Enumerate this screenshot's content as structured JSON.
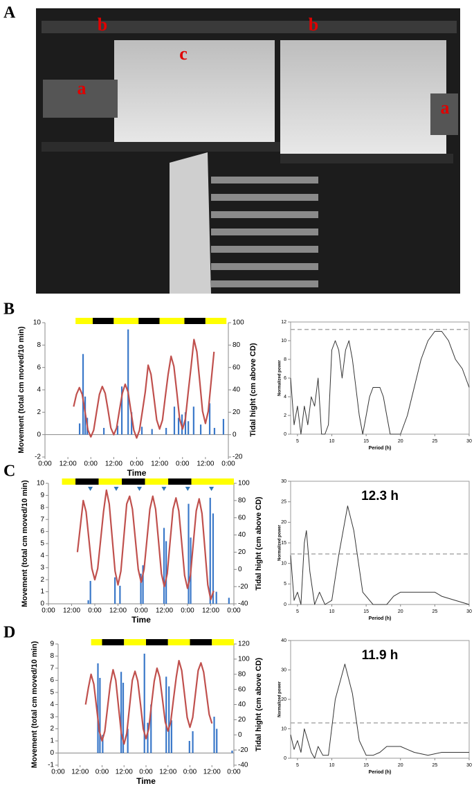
{
  "panel_labels": [
    "A",
    "B",
    "C",
    "D"
  ],
  "photo": {
    "labels": [
      "a",
      "b",
      "c",
      "b",
      "a"
    ]
  },
  "chart_data": [
    {
      "type": "combo",
      "xlabel": "Time",
      "ylabel": "Movement (total cm moved/10 min)",
      "y2label": "Tidal hight (cm above CD)",
      "xlim": [
        0,
        96
      ],
      "ylim": [
        -2,
        10
      ],
      "y2lim": [
        -20,
        100
      ],
      "xticks": [
        {
          "value": 0,
          "label": "0:00"
        },
        {
          "value": 12,
          "label": "12:00"
        },
        {
          "value": 24,
          "label": "0:00"
        },
        {
          "value": 36,
          "label": "12:00"
        },
        {
          "value": 48,
          "label": "0:00"
        },
        {
          "value": 60,
          "label": "12:00"
        },
        {
          "value": 72,
          "label": "0:00"
        },
        {
          "value": 84,
          "label": "12:00"
        },
        {
          "value": 96,
          "label": "0:00"
        }
      ],
      "yticks": [
        -2,
        0,
        2,
        4,
        6,
        8,
        10
      ],
      "y2ticks": [
        -20,
        0,
        20,
        40,
        60,
        80,
        100
      ],
      "photoperiod": [
        {
          "start": 16,
          "end": 25,
          "color": "#ffff00"
        },
        {
          "start": 25,
          "end": 36,
          "color": "#000000"
        },
        {
          "start": 36,
          "end": 49,
          "color": "#ffff00"
        },
        {
          "start": 49,
          "end": 60,
          "color": "#000000"
        },
        {
          "start": 60,
          "end": 73,
          "color": "#ffff00"
        },
        {
          "start": 73,
          "end": 84,
          "color": "#000000"
        },
        {
          "start": 84,
          "end": 95,
          "color": "#ffff00"
        }
      ],
      "series": [
        {
          "type": "bar",
          "color": "#3a78c9",
          "x": [
            18.1,
            19.9,
            21,
            22.1,
            30.8,
            38,
            40.2,
            43.5,
            45.3,
            50.7,
            56,
            63.4,
            67.7,
            69.9,
            71.7,
            73.5,
            75,
            77.8,
            81.5,
            86.2,
            88.7,
            93.4
          ],
          "values": [
            1,
            7.2,
            3.4,
            1.5,
            0.6,
            0.8,
            4.3,
            9.4,
            2,
            0.7,
            0.5,
            0.6,
            2.5,
            1.5,
            1.8,
            2,
            1.2,
            2.5,
            0.9,
            2.8,
            0.6,
            1.4
          ]
        },
        {
          "type": "line",
          "axis": "y2",
          "color": "#c0504d",
          "x": [
            15,
            16.5,
            18,
            19.5,
            21,
            22.5,
            24,
            25.5,
            27,
            28.5,
            30,
            31.5,
            33,
            34.5,
            36,
            37.5,
            39,
            40.5,
            42,
            43.5,
            45,
            46.5,
            48,
            49.5,
            51,
            52.5,
            54,
            55.5,
            57,
            58.5,
            60,
            61.5,
            63,
            64.5,
            66,
            67.5,
            69,
            70.5,
            72,
            73.5,
            75,
            76.5,
            78,
            79.5,
            81,
            82.5,
            84,
            85.5,
            87,
            88.5
          ],
          "values": [
            25,
            36,
            42,
            36,
            20,
            4,
            -2,
            4,
            20,
            36,
            43,
            37,
            22,
            6,
            0,
            6,
            22,
            37,
            45,
            38,
            21,
            4,
            -3,
            4,
            21,
            38,
            62,
            54,
            34,
            13,
            5,
            13,
            34,
            54,
            70,
            61,
            38,
            14,
            5,
            14,
            38,
            61,
            85,
            74,
            48,
            21,
            10,
            21,
            48,
            74
          ]
        }
      ]
    },
    {
      "type": "line",
      "xlabel": "Period (h)",
      "ylabel": "Normalized power",
      "xlim": [
        4,
        30
      ],
      "ylim": [
        0,
        12
      ],
      "xticks": [
        5,
        10,
        15,
        20,
        25,
        30
      ],
      "yticks": [
        0,
        2,
        4,
        6,
        8,
        10,
        12
      ],
      "threshold": 11.2,
      "series": [
        {
          "color": "#333333",
          "x": [
            4,
            4.5,
            5,
            5.5,
            6,
            6.5,
            7,
            7.5,
            8,
            8.5,
            9,
            9.5,
            10,
            10.5,
            11,
            11.5,
            12,
            12.5,
            13,
            13.5,
            14,
            14.5,
            15,
            15.5,
            16,
            17,
            17.5,
            18,
            18.5,
            19,
            20,
            21,
            22,
            23,
            24,
            25,
            26,
            27,
            28,
            29,
            30
          ],
          "values": [
            6,
            1,
            3,
            0,
            3,
            1,
            4,
            3,
            6,
            0,
            0,
            1,
            9,
            10,
            9,
            6,
            9,
            10,
            8,
            5,
            2,
            0,
            2,
            4,
            5,
            5,
            4,
            2,
            0,
            0,
            0,
            2,
            5,
            8,
            10,
            11,
            11,
            10,
            8,
            7,
            5
          ]
        }
      ]
    },
    {
      "type": "combo",
      "xlabel": "Time",
      "ylabel": "Movement (total cm moved/10 min)",
      "y2label": "Tidal hight (cm above CD)",
      "xlim": [
        0,
        96
      ],
      "ylim": [
        0,
        10
      ],
      "y2lim": [
        -40,
        100
      ],
      "xticks": [
        {
          "value": 0,
          "label": "0:00"
        },
        {
          "value": 12,
          "label": "12:00"
        },
        {
          "value": 24,
          "label": "0:00"
        },
        {
          "value": 36,
          "label": "12:00"
        },
        {
          "value": 48,
          "label": "0:00"
        },
        {
          "value": 60,
          "label": "12:00"
        },
        {
          "value": 72,
          "label": "0:00"
        },
        {
          "value": 84,
          "label": "12:00"
        },
        {
          "value": 96,
          "label": "0:00"
        }
      ],
      "yticks": [
        0,
        1,
        2,
        3,
        4,
        5,
        6,
        7,
        8,
        9,
        10
      ],
      "y2ticks": [
        -40,
        -20,
        0,
        20,
        40,
        60,
        80,
        100
      ],
      "photoperiod": [
        {
          "start": 7,
          "end": 14,
          "color": "#ffff00"
        },
        {
          "start": 14,
          "end": 26,
          "color": "#000000"
        },
        {
          "start": 26,
          "end": 38,
          "color": "#ffff00"
        },
        {
          "start": 38,
          "end": 50,
          "color": "#000000"
        },
        {
          "start": 50,
          "end": 62,
          "color": "#ffff00"
        },
        {
          "start": 62,
          "end": 74,
          "color": "#000000"
        },
        {
          "start": 74,
          "end": 96,
          "color": "#ffff00"
        }
      ],
      "markers": {
        "color": "#2e75b6",
        "x": [
          21.7,
          35.1,
          47.1,
          59.8,
          72.1,
          84.4
        ]
      },
      "series": [
        {
          "type": "bar",
          "color": "#3a78c9",
          "x": [
            20.6,
            21.7,
            34.4,
            37,
            47.8,
            48.9,
            59.8,
            60.9,
            72.5,
            73.6,
            83.7,
            85.2,
            86.9,
            93.4
          ],
          "values": [
            0.3,
            1.9,
            2.2,
            1.5,
            2.5,
            3.2,
            6.3,
            5.2,
            8.3,
            5.5,
            8.8,
            7.5,
            1,
            0.5
          ]
        },
        {
          "type": "line",
          "axis": "y2",
          "color": "#c0504d",
          "x": [
            15,
            16.5,
            18,
            19.5,
            21,
            22.5,
            24,
            25.5,
            27,
            28.5,
            30,
            31.5,
            33,
            34.5,
            36,
            37.5,
            39,
            40.5,
            42,
            43.5,
            45,
            46.5,
            48,
            49.5,
            51,
            52.5,
            54,
            55.5,
            57,
            58.5,
            60,
            61.5,
            63,
            64.5,
            66,
            67.5,
            69,
            70.5,
            72,
            73.5,
            75,
            76.5,
            78,
            79.5,
            81,
            82.5,
            84,
            85.5
          ],
          "values": [
            20,
            50,
            80,
            67,
            34,
            1,
            -12,
            1,
            34,
            67,
            92,
            76,
            37,
            -2,
            -18,
            -2,
            37,
            76,
            85,
            70,
            35,
            0,
            -15,
            0,
            35,
            70,
            85,
            70,
            33,
            -5,
            -20,
            -5,
            33,
            70,
            83,
            68,
            31,
            -7,
            -22,
            -7,
            31,
            68,
            82,
            65,
            24,
            -18,
            -35,
            -25
          ]
        }
      ]
    },
    {
      "type": "line",
      "xlabel": "Period (h)",
      "ylabel": "Normalized power",
      "xlim": [
        4,
        30
      ],
      "ylim": [
        0,
        30
      ],
      "xticks": [
        5,
        10,
        15,
        20,
        25,
        30
      ],
      "yticks": [
        0,
        5,
        10,
        15,
        20,
        25,
        30
      ],
      "threshold": 12.3,
      "annotation": "12.3 h",
      "series": [
        {
          "color": "#333333",
          "x": [
            4,
            4.5,
            5,
            5.5,
            6,
            6.3,
            6.8,
            7.5,
            8.2,
            9,
            10,
            11,
            12.3,
            13.2,
            14.5,
            16,
            18,
            19,
            20,
            21,
            25,
            26,
            28,
            30
          ],
          "values": [
            12,
            1,
            3,
            0,
            15,
            18,
            8,
            0,
            3,
            0,
            1,
            12,
            24,
            18,
            3,
            0,
            0,
            2,
            3,
            3,
            3,
            2,
            1,
            0
          ]
        }
      ]
    },
    {
      "type": "combo",
      "xlabel": "Time",
      "ylabel": "Movement (total cm moved/10 min)",
      "y2label": "Tidal hight (cm above CD)",
      "xlim": [
        0,
        96
      ],
      "ylim": [
        -1,
        9
      ],
      "y2lim": [
        -40,
        120
      ],
      "xticks": [
        {
          "value": 0,
          "label": "0:00"
        },
        {
          "value": 12,
          "label": "12:00"
        },
        {
          "value": 24,
          "label": "0:00"
        },
        {
          "value": 36,
          "label": "12:00"
        },
        {
          "value": 48,
          "label": "0:00"
        },
        {
          "value": 60,
          "label": "12:00"
        },
        {
          "value": 72,
          "label": "0:00"
        },
        {
          "value": 84,
          "label": "12:00"
        },
        {
          "value": 96,
          "label": "0:00"
        }
      ],
      "yticks": [
        -1,
        0,
        1,
        2,
        3,
        4,
        5,
        6,
        7,
        8,
        9
      ],
      "y2ticks": [
        -40,
        -20,
        0,
        20,
        40,
        60,
        80,
        100,
        120
      ],
      "photoperiod": [
        {
          "start": 18,
          "end": 24,
          "color": "#ffff00"
        },
        {
          "start": 24,
          "end": 36,
          "color": "#000000"
        },
        {
          "start": 36,
          "end": 48,
          "color": "#ffff00"
        },
        {
          "start": 48,
          "end": 60,
          "color": "#000000"
        },
        {
          "start": 60,
          "end": 72,
          "color": "#ffff00"
        },
        {
          "start": 72,
          "end": 84,
          "color": "#000000"
        },
        {
          "start": 84,
          "end": 96,
          "color": "#ffff00"
        }
      ],
      "series": [
        {
          "type": "bar",
          "color": "#3a78c9",
          "x": [
            21.7,
            22.8,
            24.3,
            34.4,
            35.5,
            38,
            47.1,
            48.9,
            50.7,
            59,
            60.5,
            61.9,
            71.7,
            73.5,
            85.2,
            86.6,
            95
          ],
          "values": [
            7.4,
            6.2,
            1.5,
            6.7,
            5.8,
            2,
            8.2,
            2.5,
            4,
            6.3,
            5.5,
            2.7,
            1,
            1.8,
            3,
            2,
            0.2
          ]
        },
        {
          "type": "line",
          "axis": "y2",
          "color": "#c0504d",
          "x": [
            15,
            16.5,
            18,
            19.5,
            21,
            22.5,
            24,
            25.5,
            27,
            28.5,
            30,
            31.5,
            33,
            34.5,
            36,
            37.5,
            39,
            40.5,
            42,
            43.5,
            45,
            46.5,
            48,
            49.5,
            51,
            52.5,
            54,
            55.5,
            57,
            58.5,
            60,
            61.5,
            63,
            64.5,
            66,
            67.5,
            69,
            70.5,
            72,
            73.5,
            75,
            76.5,
            78,
            79.5,
            81,
            82.5,
            84
          ],
          "values": [
            40,
            62,
            80,
            67,
            36,
            5,
            -8,
            5,
            36,
            67,
            86,
            72,
            37,
            2,
            -12,
            2,
            37,
            72,
            84,
            71,
            40,
            8,
            -5,
            8,
            40,
            71,
            88,
            76,
            47,
            17,
            5,
            17,
            47,
            76,
            98,
            85,
            54,
            23,
            10,
            23,
            54,
            85,
            95,
            83,
            55,
            27,
            15
          ]
        }
      ]
    },
    {
      "type": "line",
      "xlabel": "Period (h)",
      "ylabel": "Normalized power",
      "xlim": [
        4,
        30
      ],
      "ylim": [
        0,
        40
      ],
      "xticks": [
        5,
        10,
        15,
        20,
        25,
        30
      ],
      "yticks": [
        0,
        10,
        20,
        30,
        40
      ],
      "threshold": 12,
      "annotation": "11.9 h",
      "series": [
        {
          "color": "#333333",
          "x": [
            4,
            4.5,
            5,
            5.5,
            6,
            6.5,
            7,
            7.5,
            8,
            8.7,
            9.5,
            10.5,
            11.9,
            13,
            14,
            15,
            16,
            17,
            18,
            20,
            21,
            22,
            24,
            26,
            30
          ],
          "values": [
            8,
            3,
            6,
            2,
            10,
            6,
            2,
            0,
            4,
            1,
            1,
            20,
            32,
            22,
            6,
            1,
            1,
            2,
            4,
            4,
            3,
            2,
            1,
            2,
            2
          ]
        }
      ]
    }
  ]
}
